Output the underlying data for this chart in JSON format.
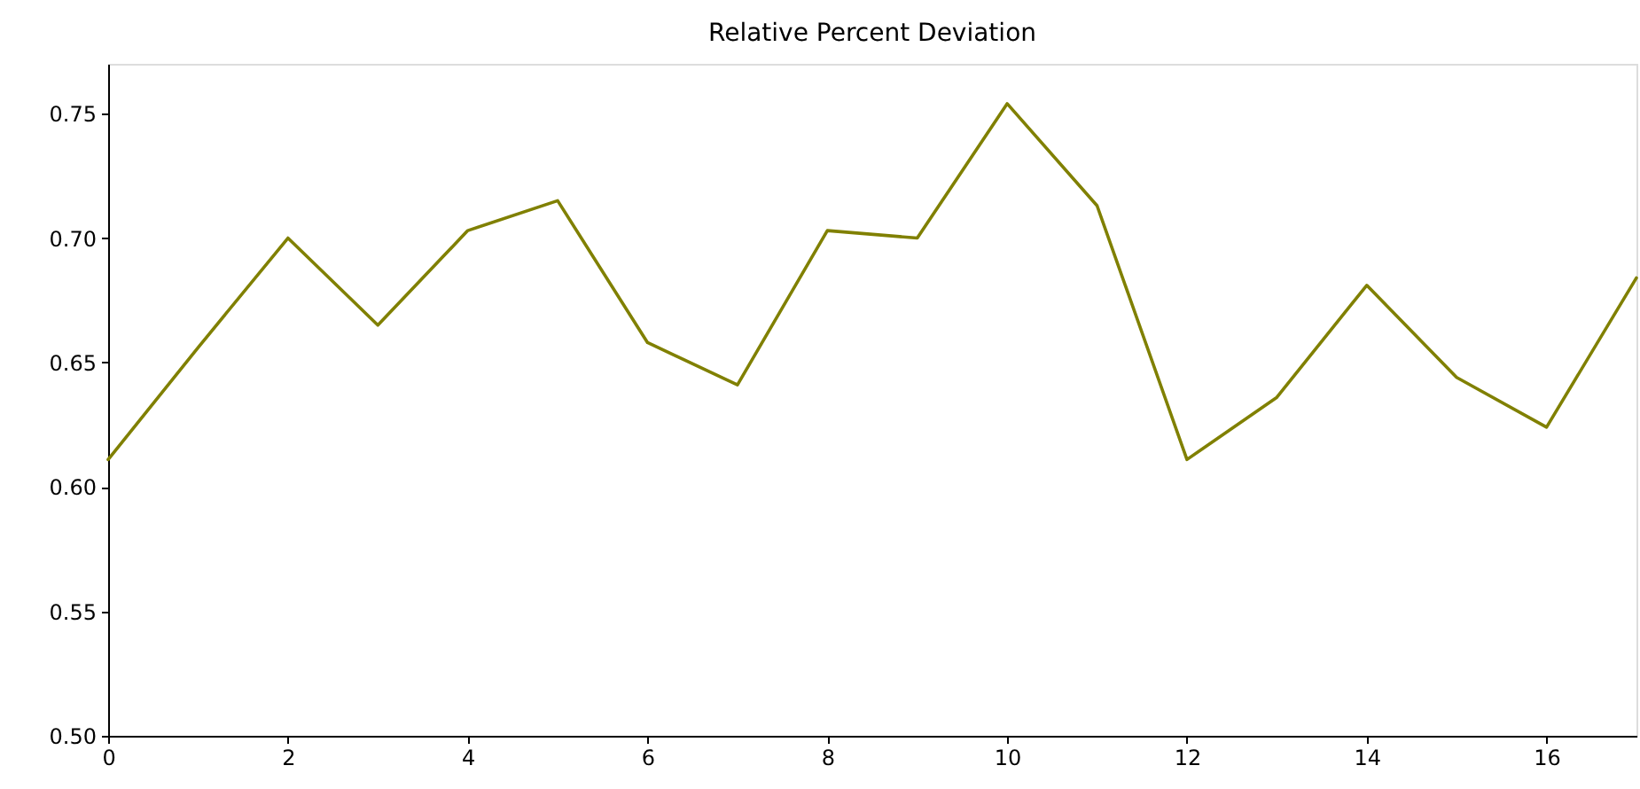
{
  "chart_data": {
    "type": "line",
    "title": "Relative Percent Deviation",
    "x": [
      0,
      1,
      2,
      3,
      4,
      5,
      6,
      7,
      8,
      9,
      10,
      11,
      12,
      13,
      14,
      15,
      16,
      17
    ],
    "values": [
      0.611,
      0.656,
      0.7,
      0.665,
      0.703,
      0.715,
      0.658,
      0.641,
      0.703,
      0.7,
      0.754,
      0.713,
      0.611,
      0.636,
      0.681,
      0.644,
      0.624,
      0.684
    ],
    "color": "#808000",
    "xlim": [
      0,
      17
    ],
    "xticks": [
      0,
      2,
      4,
      6,
      8,
      10,
      12,
      14,
      16
    ],
    "ylim": [
      0.5,
      0.77
    ],
    "yticks": [
      {
        "value": 0.5,
        "label": "0.50"
      },
      0.55,
      {
        "value": 0.6,
        "label": "0.60"
      },
      0.65,
      {
        "value": 0.7,
        "label": "0.70"
      },
      0.75
    ]
  }
}
